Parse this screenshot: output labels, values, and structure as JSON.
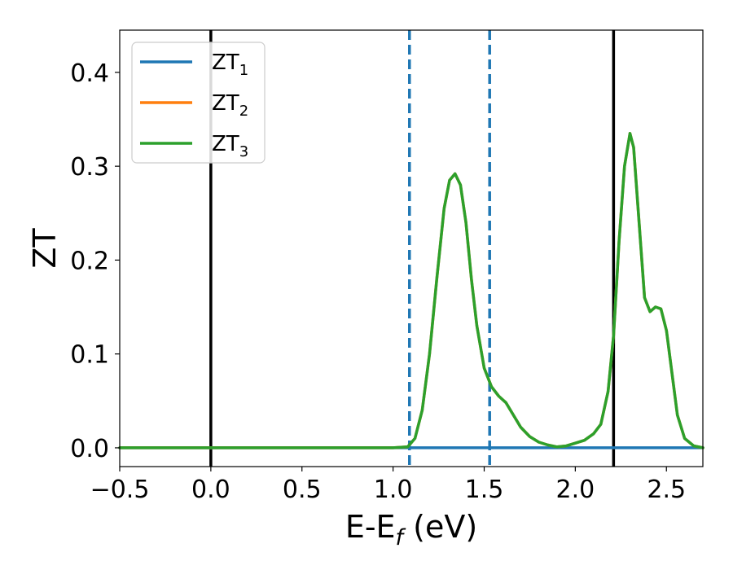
{
  "chart_data": {
    "type": "line",
    "xlabel": "E-E",
    "xlabel_sub": "f",
    "xlabel_unit": " (eV)",
    "ylabel": "ZT",
    "xlim": [
      -0.5,
      2.7
    ],
    "ylim": [
      -0.02,
      0.445
    ],
    "xticks": [
      -0.5,
      0.0,
      0.5,
      1.0,
      1.5,
      2.0,
      2.5
    ],
    "xtick_labels": [
      "−0.5",
      "0.0",
      "0.5",
      "1.0",
      "1.5",
      "2.0",
      "2.5"
    ],
    "yticks": [
      0.0,
      0.1,
      0.2,
      0.3,
      0.4
    ],
    "ytick_labels": [
      "0.0",
      "0.1",
      "0.2",
      "0.3",
      "0.4"
    ],
    "legend_position": "top-left",
    "grid": false,
    "vertical_lines": [
      {
        "x": 0.0,
        "style": "solid",
        "color": "#000000"
      },
      {
        "x": 2.21,
        "style": "solid",
        "color": "#000000"
      },
      {
        "x": 1.09,
        "style": "dashed",
        "color": "#1f77b4"
      },
      {
        "x": 1.53,
        "style": "dashed",
        "color": "#1f77b4"
      }
    ],
    "series": [
      {
        "name": "ZT",
        "subscript": "1",
        "color": "#1f77b4",
        "x": [
          -0.5,
          0.0,
          0.5,
          1.0,
          1.5,
          2.0,
          2.5,
          2.7
        ],
        "y": [
          0,
          0,
          0,
          0,
          0,
          0,
          0,
          0
        ]
      },
      {
        "name": "ZT",
        "subscript": "2",
        "color": "#ff7f0e",
        "x": [
          -0.5,
          0.0,
          0.5,
          1.0,
          1.08,
          1.12,
          1.16,
          1.2,
          1.24,
          1.28,
          1.31,
          1.34,
          1.37,
          1.4,
          1.43,
          1.46,
          1.5,
          1.54,
          1.58,
          1.62,
          1.66,
          1.7,
          1.75,
          1.8,
          1.85,
          1.9,
          1.95,
          2.0,
          2.05,
          2.1,
          2.14,
          2.18,
          2.21,
          2.24,
          2.27,
          2.3,
          2.32,
          2.35,
          2.38,
          2.41,
          2.44,
          2.47,
          2.5,
          2.53,
          2.56,
          2.6,
          2.65,
          2.7
        ],
        "y": [
          0,
          0,
          0,
          0,
          0.001,
          0.01,
          0.04,
          0.1,
          0.18,
          0.255,
          0.285,
          0.292,
          0.28,
          0.24,
          0.18,
          0.13,
          0.085,
          0.065,
          0.055,
          0.048,
          0.035,
          0.022,
          0.012,
          0.006,
          0.003,
          0.001,
          0.002,
          0.005,
          0.008,
          0.015,
          0.025,
          0.06,
          0.12,
          0.22,
          0.3,
          0.335,
          0.32,
          0.24,
          0.16,
          0.145,
          0.15,
          0.148,
          0.125,
          0.08,
          0.035,
          0.01,
          0.002,
          0.0
        ]
      },
      {
        "name": "ZT",
        "subscript": "3",
        "color": "#2ca02c",
        "x": [
          -0.5,
          0.0,
          0.5,
          1.0,
          1.08,
          1.12,
          1.16,
          1.2,
          1.24,
          1.28,
          1.31,
          1.34,
          1.37,
          1.4,
          1.43,
          1.46,
          1.5,
          1.54,
          1.58,
          1.62,
          1.66,
          1.7,
          1.75,
          1.8,
          1.85,
          1.9,
          1.95,
          2.0,
          2.05,
          2.1,
          2.14,
          2.18,
          2.21,
          2.24,
          2.27,
          2.3,
          2.32,
          2.35,
          2.38,
          2.41,
          2.44,
          2.47,
          2.5,
          2.53,
          2.56,
          2.6,
          2.65,
          2.7
        ],
        "y": [
          0,
          0,
          0,
          0,
          0.001,
          0.01,
          0.04,
          0.1,
          0.18,
          0.255,
          0.285,
          0.292,
          0.28,
          0.24,
          0.18,
          0.13,
          0.085,
          0.065,
          0.055,
          0.048,
          0.035,
          0.022,
          0.012,
          0.006,
          0.003,
          0.001,
          0.002,
          0.005,
          0.008,
          0.015,
          0.025,
          0.06,
          0.12,
          0.22,
          0.3,
          0.335,
          0.32,
          0.24,
          0.16,
          0.145,
          0.15,
          0.148,
          0.125,
          0.08,
          0.035,
          0.01,
          0.002,
          0.0
        ]
      }
    ]
  }
}
